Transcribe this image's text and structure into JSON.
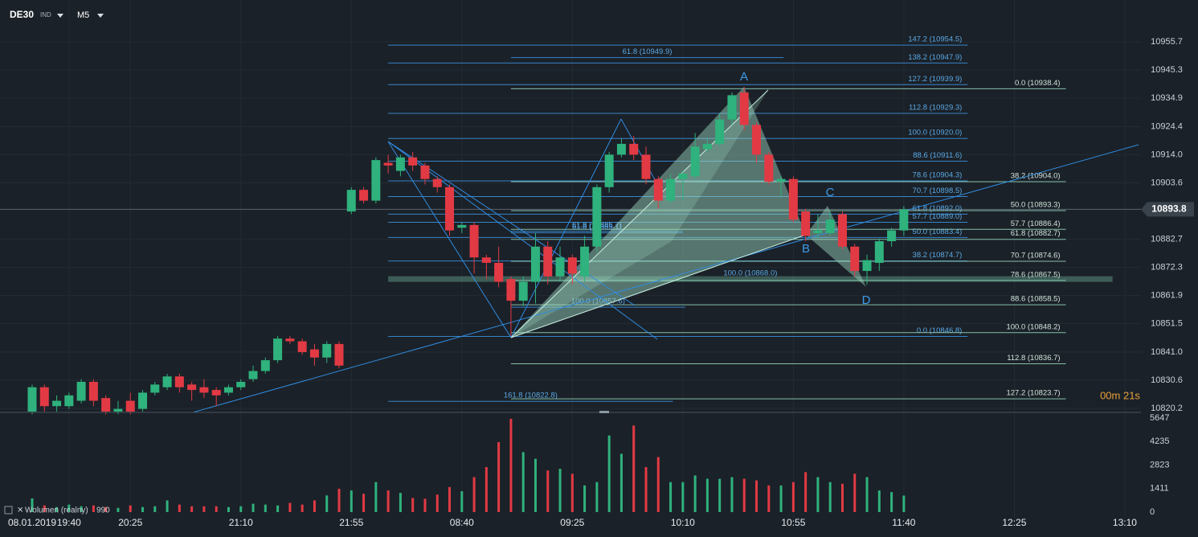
{
  "header": {
    "symbol": "DE30",
    "market": "IND",
    "timeframe": "M5"
  },
  "chart_data": [
    {
      "type": "candlestick",
      "date_label": "08.01.2019",
      "categories": [
        null,
        null,
        null,
        "19:40",
        null,
        null,
        null,
        null,
        "20:25",
        null,
        null,
        null,
        null,
        null,
        null,
        null,
        null,
        "21:10",
        null,
        null,
        null,
        null,
        null,
        null,
        null,
        null,
        "21:55",
        null,
        null,
        null,
        null,
        null,
        null,
        null,
        null,
        "08:40",
        null,
        null,
        null,
        null,
        null,
        null,
        null,
        null,
        "09:25",
        null,
        null,
        null,
        null,
        null,
        null,
        null,
        null,
        "10:10",
        null,
        null,
        null,
        null,
        null,
        null,
        null,
        null,
        "10:55",
        null,
        null,
        null,
        null,
        null,
        null,
        null,
        null,
        "11:40",
        null,
        null,
        null,
        null,
        null,
        null,
        null,
        null,
        "12:25",
        null,
        null,
        null,
        null,
        null,
        null,
        null,
        null,
        "13:10"
      ],
      "open": [
        10819,
        10828,
        10821,
        10821,
        10823,
        10830,
        10824,
        10819,
        10823,
        10820,
        10826,
        10828,
        10832,
        10829,
        10828,
        10827,
        10826,
        10828,
        10831,
        10834,
        10838,
        10846,
        10845,
        10842,
        10839,
        10844,
        10893,
        10901,
        10897,
        10911,
        10908,
        10913,
        10910,
        10905,
        10902,
        10887,
        10888,
        10876,
        10874,
        10868,
        10860,
        10867,
        10880,
        10869,
        10876,
        10869,
        10880,
        10902,
        10914,
        10918,
        10914,
        10905,
        10897,
        10905,
        10906,
        10916,
        10918,
        10927,
        10937,
        10925,
        10914,
        10904,
        10905,
        10893,
        10885,
        10885,
        10892,
        10880,
        10871,
        10874,
        10882,
        10886,
        null,
        null,
        null,
        null,
        null,
        null,
        null,
        null,
        null,
        null,
        null,
        null,
        null,
        null,
        null,
        null,
        null,
        null
      ],
      "high": [
        10829,
        10829,
        10825,
        10826,
        10831,
        10831,
        10825,
        10823,
        10826,
        10827,
        10830,
        10833,
        10833,
        10830,
        10831,
        10828,
        10829,
        10831,
        10836,
        10839,
        10847,
        10847,
        10846,
        10844,
        10845,
        10845,
        10902,
        10902,
        10913,
        10914,
        10914,
        10915,
        10911,
        10906,
        10903,
        10889,
        10889,
        10877,
        10880,
        10869,
        10869,
        10885,
        10882,
        10880,
        10877,
        10884,
        10903,
        10915,
        10920,
        10921,
        10917,
        10906,
        10907,
        10908,
        10922,
        10920,
        10929,
        10937,
        10939,
        10926,
        10915,
        10906,
        10906,
        10894,
        10892,
        10893,
        10893,
        10881,
        10877,
        10883,
        10887,
        10895,
        null,
        null,
        null,
        null,
        null,
        null,
        null,
        null,
        null,
        null,
        null,
        null,
        null,
        null,
        null,
        null,
        null,
        null
      ],
      "low": [
        10818,
        10819,
        10819,
        10820,
        10822,
        10821,
        10818,
        10818,
        10818,
        10819,
        10825,
        10827,
        10826,
        10823,
        10824,
        10821,
        10825,
        10827,
        10830,
        10833,
        10837,
        10844,
        10840,
        10836,
        10837,
        10835,
        10892,
        10896,
        10896,
        10907,
        10906,
        10908,
        10903,
        10900,
        10884,
        10885,
        10870,
        10868,
        10865,
        10847,
        10858,
        10859,
        10866,
        10867,
        10866,
        10867,
        10878,
        10900,
        10913,
        10912,
        10903,
        10894,
        10896,
        10897,
        10905,
        10915,
        10917,
        10925,
        10923,
        10911,
        10903,
        10898,
        10889,
        10882,
        10883,
        10884,
        10879,
        10869,
        10866,
        10871,
        10880,
        10884,
        null,
        null,
        null,
        null,
        null,
        null,
        null,
        null,
        null,
        null,
        null,
        null,
        null,
        null,
        null,
        null,
        null,
        null
      ],
      "close": [
        10828,
        10821,
        10823,
        10825,
        10830,
        10823,
        10819,
        10820,
        10819,
        10826,
        10829,
        10832,
        10828,
        10827,
        10826,
        10825,
        10828,
        10830,
        10834,
        10838,
        10846,
        10845,
        10841,
        10839,
        10844,
        10836,
        10901,
        10897,
        10912,
        10910,
        10913,
        10910,
        10905,
        10902,
        10886,
        10888,
        10876,
        10874,
        10867,
        10860,
        10867,
        10880,
        10869,
        10876,
        10870,
        10880,
        10902,
        10914,
        10918,
        10914,
        10905,
        10897,
        10905,
        10907,
        10917,
        10918,
        10927,
        10936,
        10925,
        10914,
        10904,
        10905,
        10890,
        10884,
        10886,
        10890,
        10880,
        10871,
        10875,
        10882,
        10886,
        10893.8,
        null,
        null,
        null,
        null,
        null,
        null,
        null,
        null,
        null,
        null,
        null,
        null,
        null,
        null,
        null,
        null,
        null,
        null
      ],
      "up_color": "#2fb27d",
      "down_color": "#e23a44",
      "ylim": [
        10818.7,
        10971.2
      ],
      "yticks": [
        10955.7,
        10945.3,
        10934.9,
        10924.4,
        {
          "value": 10914,
          "label": "10914.0"
        },
        10903.6,
        10882.7,
        10872.3,
        10861.9,
        10851.5,
        {
          "value": 10841,
          "label": "10841.0"
        },
        10830.6,
        10820.2
      ],
      "grid": true,
      "last_price": 10893.8,
      "countdown": "00m 21s",
      "fib_a": [
        {
          "label": "147.2 (10954.5)",
          "value": 10954.5,
          "from": 29,
          "to": 76.2
        },
        {
          "label": "138.2 (10947.9)",
          "value": 10947.9,
          "from": 29,
          "to": 76.2
        },
        {
          "label": "127.2 (10939.9)",
          "value": 10939.9,
          "from": 29,
          "to": 76.2
        },
        {
          "label": "112.8 (10929.3)",
          "value": 10929.3,
          "from": 29,
          "to": 76.2
        },
        {
          "label": "100.0 (10920.0)",
          "value": 10920.0,
          "from": 29,
          "to": 76.2
        },
        {
          "label": "88.6 (10911.6)",
          "value": 10911.6,
          "from": 29,
          "to": 76.2
        },
        {
          "label": "78.6 (10904.3)",
          "value": 10904.3,
          "from": 29,
          "to": 76.2
        },
        {
          "label": "70.7 (10898.5)",
          "value": 10898.5,
          "from": 29,
          "to": 76.2
        },
        {
          "label": "61.8 (10892.0)",
          "value": 10892.0,
          "from": 29,
          "to": 76.2
        },
        {
          "label": "57.7 (10889.0)",
          "value": 10889.0,
          "from": 29,
          "to": 76.2
        },
        {
          "label": "50.0 (10883.4)",
          "value": 10883.4,
          "from": 29,
          "to": 76.2
        },
        {
          "label": "38.2 (10874.7)",
          "value": 10874.7,
          "from": 29,
          "to": 76.2
        },
        {
          "label": "0.0 (10846.8)",
          "value": 10846.8,
          "from": 29,
          "to": 76.2
        }
      ],
      "fib_b": [
        {
          "label": "0.0 (10938.4)",
          "value": 10938.4,
          "from": 39,
          "to": 84.2
        },
        {
          "label": "38.2 (10904.0)",
          "value": 10904.0,
          "from": 39,
          "to": 84.2
        },
        {
          "label": "50.0 (10893.3)",
          "value": 10893.3,
          "from": 39,
          "to": 84.2
        },
        {
          "label": "57.7 (10886.4)",
          "value": 10886.4,
          "from": 39,
          "to": 84.2
        },
        {
          "label": "61.8 (10882.7)",
          "value": 10882.7,
          "from": 39,
          "to": 84.2
        },
        {
          "label": "70.7 (10874.6)",
          "value": 10874.6,
          "from": 39,
          "to": 84.2
        },
        {
          "label": "78.6 (10867.5)",
          "value": 10867.5,
          "from": 39,
          "to": 84.2
        },
        {
          "label": "88.6 (10858.5)",
          "value": 10858.5,
          "from": 39,
          "to": 84.2
        },
        {
          "label": "100.0 (10848.2)",
          "value": 10848.2,
          "from": 39,
          "to": 84.2
        },
        {
          "label": "112.8 (10836.7)",
          "value": 10836.7,
          "from": 39,
          "to": 84.2
        },
        {
          "label": "127.2 (10823.7)",
          "value": 10823.7,
          "from": 39,
          "to": 84.2
        }
      ],
      "fib_c": [
        {
          "label": "61.8 (10949.9)",
          "value": 10949.9,
          "from": 39,
          "to": 61.2
        },
        {
          "label": "61.8 (10885.7)",
          "value": 10885.7,
          "from": 39,
          "to": 53
        },
        {
          "label": "61.8 (10885.1)",
          "value": 10885.1,
          "from": 39,
          "to": 53
        },
        {
          "label": "100.0 (10868.0)",
          "value": 10868.0,
          "from": 29,
          "to": 88,
          "highlight": true
        },
        {
          "label": "100.0 (10857.6)",
          "value": 10857.6,
          "from": 39,
          "to": 53.2
        },
        {
          "label": "161.8 (10822.8)",
          "value": 10822.8,
          "from": 29,
          "to": 52.2
        }
      ],
      "pattern_labels": [
        "A",
        "B",
        "C",
        "D"
      ]
    },
    {
      "type": "bar",
      "name": "Wolumen (realny)",
      "values": [
        820,
        400,
        300,
        450,
        350,
        400,
        300,
        250,
        400,
        300,
        350,
        700,
        450,
        350,
        350,
        350,
        300,
        350,
        500,
        450,
        400,
        550,
        450,
        700,
        1000,
        1400,
        1300,
        1100,
        1800,
        1300,
        1150,
        850,
        800,
        1050,
        1500,
        1250,
        2100,
        2700,
        4200,
        5600,
        3600,
        3200,
        2500,
        2600,
        2300,
        1600,
        1800,
        4600,
        3500,
        5200,
        2700,
        3300,
        1800,
        1800,
        2200,
        2000,
        2000,
        2100,
        2000,
        1900,
        1600,
        1600,
        1800,
        2400,
        2100,
        1800,
        1700,
        2300,
        2100,
        1300,
        1200,
        990,
        null,
        null,
        null,
        null,
        null,
        null,
        null,
        null,
        null,
        null,
        null,
        null,
        null,
        null,
        null,
        null,
        null,
        null
      ],
      "ylim": [
        0,
        5937
      ],
      "yticks": [
        0,
        1411,
        2823,
        4235,
        5647
      ]
    }
  ]
}
